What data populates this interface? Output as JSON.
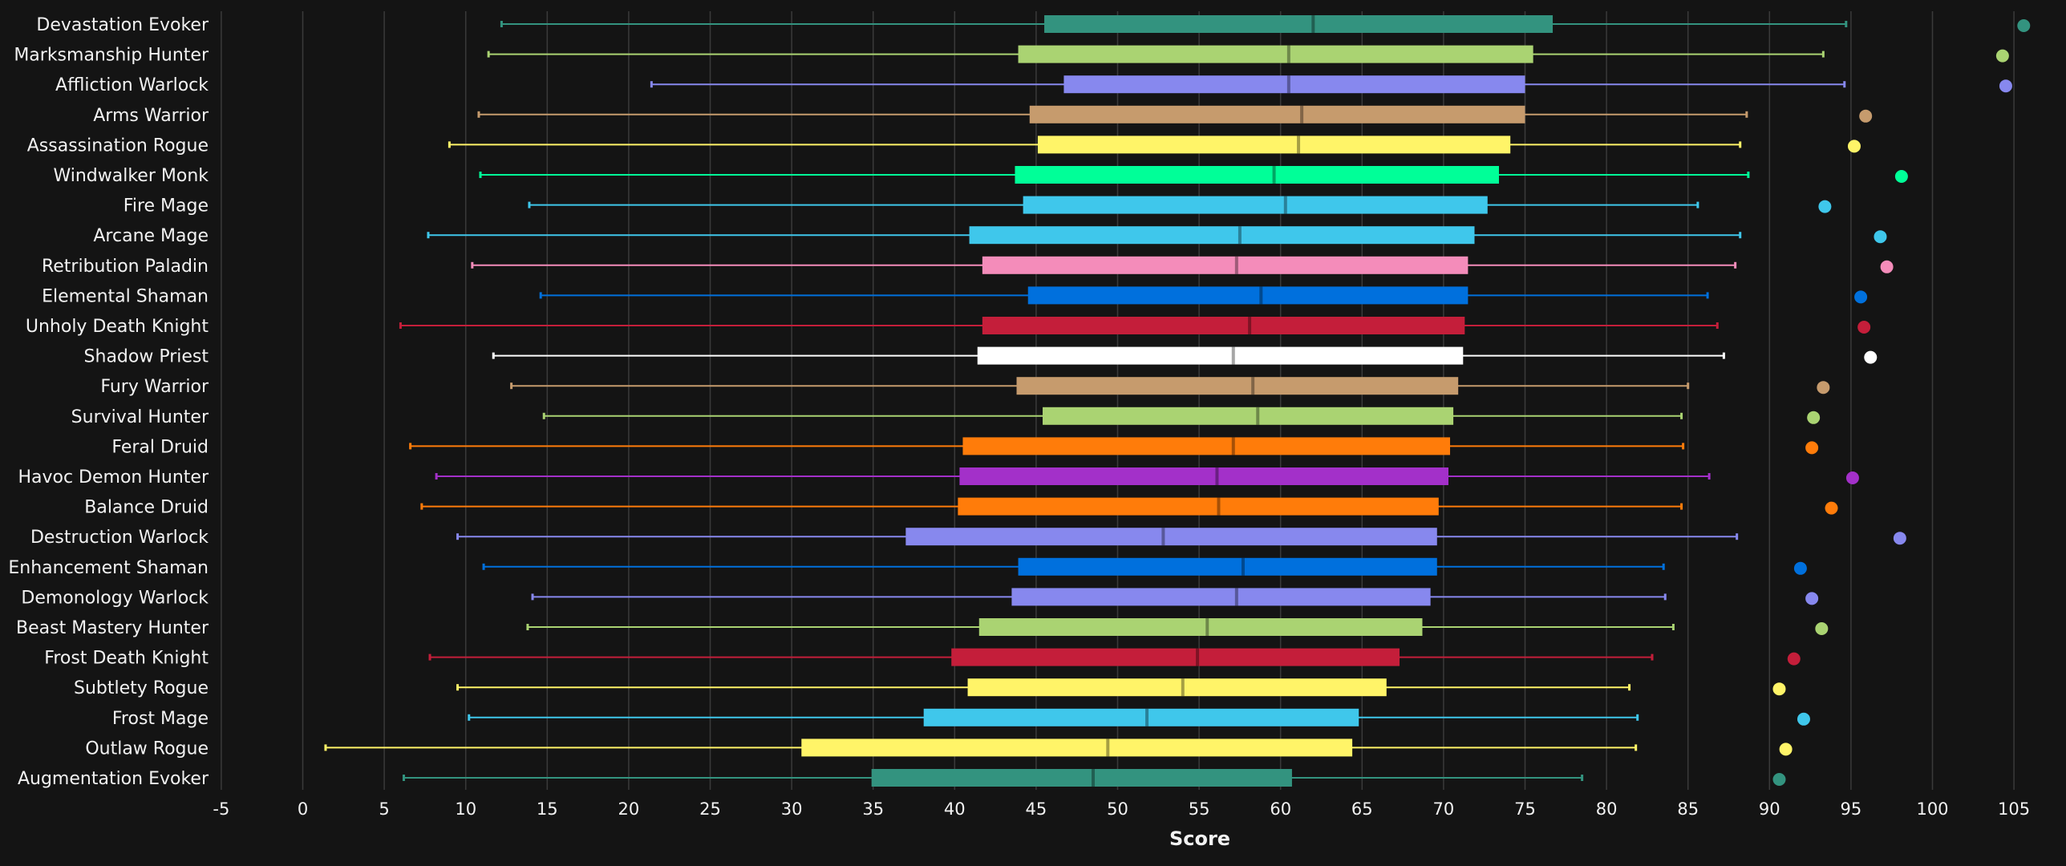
{
  "chart_data": {
    "type": "boxplot",
    "xlabel": "Score",
    "xlim": [
      -5,
      107
    ],
    "xticks": [
      -5,
      0,
      5,
      10,
      15,
      20,
      25,
      30,
      35,
      40,
      45,
      50,
      55,
      60,
      65,
      70,
      75,
      80,
      85,
      90,
      95,
      100,
      105
    ],
    "grid": true,
    "background": "#141414",
    "categories": [
      "Devastation Evoker",
      "Marksmanship Hunter",
      "Affliction Warlock",
      "Arms Warrior",
      "Assassination Rogue",
      "Windwalker Monk",
      "Fire Mage",
      "Arcane Mage",
      "Retribution Paladin",
      "Elemental Shaman",
      "Unholy Death Knight",
      "Shadow Priest",
      "Fury Warrior",
      "Survival Hunter",
      "Feral Druid",
      "Havoc Demon Hunter",
      "Balance Druid",
      "Destruction Warlock",
      "Enhancement Shaman",
      "Demonology Warlock",
      "Beast Mastery Hunter",
      "Frost Death Knight",
      "Subtlety Rogue",
      "Frost Mage",
      "Outlaw Rogue",
      "Augmentation Evoker"
    ],
    "boxes": [
      {
        "min": 12.2,
        "q1": 45.5,
        "median": 62.0,
        "q3": 76.7,
        "max": 94.7,
        "outlier": 105.6,
        "color": "#33937f"
      },
      {
        "min": 11.4,
        "q1": 43.9,
        "median": 60.5,
        "q3": 75.5,
        "max": 93.3,
        "outlier": 104.3,
        "color": "#aad372"
      },
      {
        "min": 21.4,
        "q1": 46.7,
        "median": 60.5,
        "q3": 75.0,
        "max": 94.6,
        "outlier": 104.5,
        "color": "#8788ee"
      },
      {
        "min": 10.8,
        "q1": 44.6,
        "median": 61.3,
        "q3": 75.0,
        "max": 88.6,
        "outlier": 95.9,
        "color": "#c69b6d"
      },
      {
        "min": 9.0,
        "q1": 45.1,
        "median": 61.1,
        "q3": 74.1,
        "max": 88.2,
        "outlier": 95.2,
        "color": "#fff468"
      },
      {
        "min": 10.9,
        "q1": 43.7,
        "median": 59.6,
        "q3": 73.4,
        "max": 88.7,
        "outlier": 98.1,
        "color": "#00ff98"
      },
      {
        "min": 13.9,
        "q1": 44.2,
        "median": 60.3,
        "q3": 72.7,
        "max": 85.6,
        "outlier": 93.4,
        "color": "#3fc7eb"
      },
      {
        "min": 7.7,
        "q1": 40.9,
        "median": 57.5,
        "q3": 71.9,
        "max": 88.2,
        "outlier": 96.8,
        "color": "#3fc7eb"
      },
      {
        "min": 10.4,
        "q1": 41.7,
        "median": 57.3,
        "q3": 71.5,
        "max": 87.9,
        "outlier": 97.2,
        "color": "#f48cba"
      },
      {
        "min": 14.6,
        "q1": 44.5,
        "median": 58.8,
        "q3": 71.5,
        "max": 86.2,
        "outlier": 95.6,
        "color": "#0070dd"
      },
      {
        "min": 6.0,
        "q1": 41.7,
        "median": 58.1,
        "q3": 71.3,
        "max": 86.8,
        "outlier": 95.8,
        "color": "#c41e3a"
      },
      {
        "min": 11.7,
        "q1": 41.4,
        "median": 57.1,
        "q3": 71.2,
        "max": 87.2,
        "outlier": 96.2,
        "color": "#ffffff"
      },
      {
        "min": 12.8,
        "q1": 43.8,
        "median": 58.3,
        "q3": 70.9,
        "max": 85.0,
        "outlier": 93.3,
        "color": "#c69b6d"
      },
      {
        "min": 14.8,
        "q1": 45.4,
        "median": 58.6,
        "q3": 70.6,
        "max": 84.6,
        "outlier": 92.7,
        "color": "#aad372"
      },
      {
        "min": 6.6,
        "q1": 40.5,
        "median": 57.1,
        "q3": 70.4,
        "max": 84.7,
        "outlier": 92.6,
        "color": "#ff7c0a"
      },
      {
        "min": 8.2,
        "q1": 40.3,
        "median": 56.1,
        "q3": 70.3,
        "max": 86.3,
        "outlier": 95.1,
        "color": "#a330c9"
      },
      {
        "min": 7.3,
        "q1": 40.2,
        "median": 56.2,
        "q3": 69.7,
        "max": 84.6,
        "outlier": 93.8,
        "color": "#ff7c0a"
      },
      {
        "min": 9.5,
        "q1": 37.0,
        "median": 52.8,
        "q3": 69.6,
        "max": 88.0,
        "outlier": 98.0,
        "color": "#8788ee"
      },
      {
        "min": 11.1,
        "q1": 43.9,
        "median": 57.7,
        "q3": 69.6,
        "max": 83.5,
        "outlier": 91.9,
        "color": "#0070dd"
      },
      {
        "min": 14.1,
        "q1": 43.5,
        "median": 57.3,
        "q3": 69.2,
        "max": 83.6,
        "outlier": 92.6,
        "color": "#8788ee"
      },
      {
        "min": 13.8,
        "q1": 41.5,
        "median": 55.5,
        "q3": 68.7,
        "max": 84.1,
        "outlier": 93.2,
        "color": "#aad372"
      },
      {
        "min": 7.8,
        "q1": 39.8,
        "median": 54.9,
        "q3": 67.3,
        "max": 82.8,
        "outlier": 91.5,
        "color": "#c41e3a"
      },
      {
        "min": 9.5,
        "q1": 40.8,
        "median": 54.0,
        "q3": 66.5,
        "max": 81.4,
        "outlier": 90.6,
        "color": "#fff468"
      },
      {
        "min": 10.2,
        "q1": 38.1,
        "median": 51.8,
        "q3": 64.8,
        "max": 81.9,
        "outlier": 92.1,
        "color": "#3fc7eb"
      },
      {
        "min": 1.4,
        "q1": 30.6,
        "median": 49.4,
        "q3": 64.4,
        "max": 81.8,
        "outlier": 91.0,
        "color": "#fff468"
      },
      {
        "min": 6.2,
        "q1": 34.9,
        "median": 48.5,
        "q3": 60.7,
        "max": 78.5,
        "outlier": 90.6,
        "color": "#33937f"
      }
    ]
  }
}
